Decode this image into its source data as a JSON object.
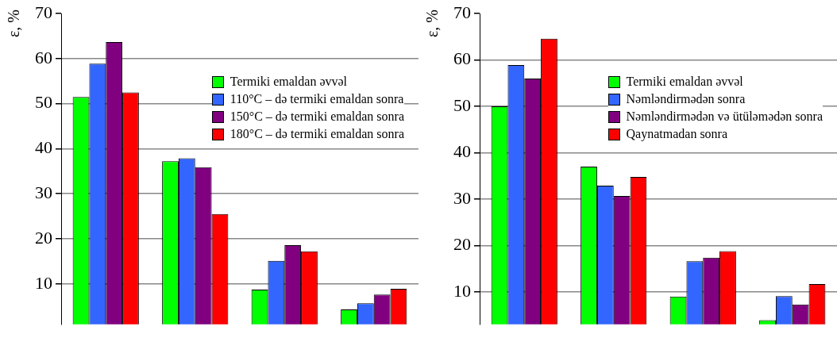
{
  "chart_data": [
    {
      "type": "bar",
      "ylabel": "ε, %",
      "categories": [
        null,
        null,
        null,
        null
      ],
      "ylim": [
        1,
        70
      ],
      "yticks": [
        10,
        20,
        30,
        40,
        50,
        60,
        70
      ],
      "grid": "y",
      "legend": "top right",
      "series": [
        {
          "name": "Termiki emaldan əvvəl",
          "color": "#00ff00",
          "values": [
            51.5,
            37.2,
            8.7,
            4.3
          ]
        },
        {
          "name": "110°C – də termiki emaldan sonra",
          "color": "#3366ff",
          "values": [
            58.9,
            37.9,
            15.1,
            5.7
          ]
        },
        {
          "name": "150°C – də termiki emaldan sonra",
          "color": "#800080",
          "values": [
            63.7,
            35.9,
            18.6,
            7.6
          ]
        },
        {
          "name": "180°C – də termiki emaldan sonra",
          "color": "#ff0000",
          "values": [
            52.5,
            25.5,
            17.2,
            8.9
          ]
        }
      ]
    },
    {
      "type": "bar",
      "ylabel": "ε, %",
      "categories": [
        null,
        null,
        null,
        null
      ],
      "ylim": [
        3,
        70
      ],
      "yticks": [
        10,
        20,
        30,
        40,
        50,
        60,
        70
      ],
      "grid": "y",
      "legend": "top right",
      "series": [
        {
          "name": "Termiki emaldan əvvəl",
          "color": "#00ff00",
          "values": [
            50,
            37,
            9,
            3.9
          ]
        },
        {
          "name": "Nəmləndirmədən sonra",
          "color": "#3366ff",
          "values": [
            58.9,
            32.9,
            16.6,
            9.1
          ]
        },
        {
          "name": "Nəmləndirmədən və ütüləmədən sonra",
          "color": "#800080",
          "values": [
            56,
            30.7,
            17.4,
            7.3
          ]
        },
        {
          "name": "Qaynatmadan sonra",
          "color": "#ff0000",
          "values": [
            64.6,
            34.8,
            18.8,
            11.7
          ]
        }
      ]
    }
  ]
}
